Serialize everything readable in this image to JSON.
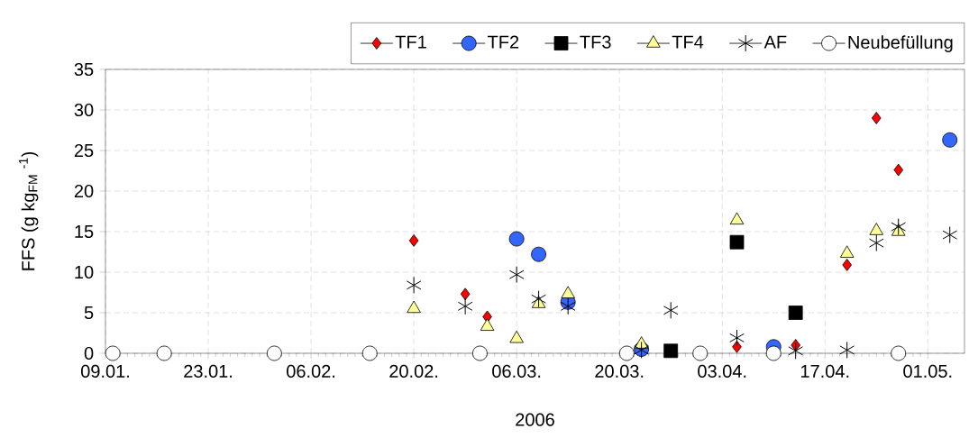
{
  "chart_data": {
    "type": "scatter",
    "xlabel": "2006",
    "ylabel": "FFS (g kg$_{FM}$ $^{-1}$)",
    "xlim": [
      "2006-01-09",
      "2006-05-06"
    ],
    "ylim": [
      0,
      35
    ],
    "xticks": [
      {
        "value": "2006-01-09",
        "label": "09.01."
      },
      {
        "value": "2006-01-23",
        "label": "23.01."
      },
      {
        "value": "2006-02-06",
        "label": "06.02."
      },
      {
        "value": "2006-02-20",
        "label": "20.02."
      },
      {
        "value": "2006-03-06",
        "label": "06.03."
      },
      {
        "value": "2006-03-20",
        "label": "20.03."
      },
      {
        "value": "2006-04-03",
        "label": "03.04."
      },
      {
        "value": "2006-04-17",
        "label": "17.04."
      },
      {
        "value": "2006-05-01",
        "label": "01.05."
      }
    ],
    "yticks": [
      0,
      5,
      10,
      15,
      20,
      25,
      30,
      35
    ],
    "grid": true,
    "legend": "top",
    "series": [
      {
        "name": "TF1",
        "color": "#ff0000",
        "marker": "diamond",
        "x": [
          "2006-02-20",
          "2006-02-27",
          "2006-03-02",
          "2006-04-05",
          "2006-04-13",
          "2006-04-20",
          "2006-04-24",
          "2006-04-27"
        ],
        "values": [
          13.9,
          7.3,
          4.5,
          0.8,
          1.0,
          10.9,
          29.0,
          22.6
        ]
      },
      {
        "name": "TF2",
        "color": "#3366ff",
        "marker": "circle",
        "x": [
          "2006-03-06",
          "2006-03-09",
          "2006-03-13",
          "2006-03-23",
          "2006-04-10",
          "2006-05-04"
        ],
        "values": [
          14.1,
          12.2,
          6.3,
          0.5,
          0.8,
          26.3
        ]
      },
      {
        "name": "TF3",
        "color": "#000000",
        "marker": "square",
        "x": [
          "2006-03-27",
          "2006-04-05",
          "2006-04-13"
        ],
        "values": [
          0.3,
          13.7,
          5.0
        ]
      },
      {
        "name": "TF4",
        "color": "#ffff99",
        "marker": "triangle",
        "x": [
          "2006-02-20",
          "2006-03-02",
          "2006-03-06",
          "2006-03-09",
          "2006-03-13",
          "2006-03-23",
          "2006-04-05",
          "2006-04-20",
          "2006-04-24",
          "2006-04-27"
        ],
        "values": [
          5.5,
          3.3,
          1.8,
          6.1,
          7.3,
          1.1,
          16.4,
          12.3,
          15.1,
          15.0
        ]
      },
      {
        "name": "AF",
        "color": "#000000",
        "marker": "cross",
        "x": [
          "2006-02-20",
          "2006-02-27",
          "2006-03-06",
          "2006-03-09",
          "2006-03-13",
          "2006-03-23",
          "2006-03-27",
          "2006-04-05",
          "2006-04-13",
          "2006-04-20",
          "2006-04-24",
          "2006-04-27",
          "2006-05-04"
        ],
        "values": [
          8.4,
          5.8,
          9.7,
          6.7,
          5.8,
          0.4,
          5.3,
          1.9,
          0.3,
          0.4,
          13.6,
          15.6,
          14.6
        ]
      },
      {
        "name": "Neubefüllung",
        "color": "#ffffff",
        "marker": "circle",
        "x": [
          "2006-01-10",
          "2006-01-17",
          "2006-02-01",
          "2006-02-14",
          "2006-03-01",
          "2006-03-21",
          "2006-03-31",
          "2006-04-10",
          "2006-04-27"
        ],
        "values": [
          0,
          0,
          0,
          0,
          0,
          0,
          0,
          0,
          0
        ]
      }
    ]
  }
}
